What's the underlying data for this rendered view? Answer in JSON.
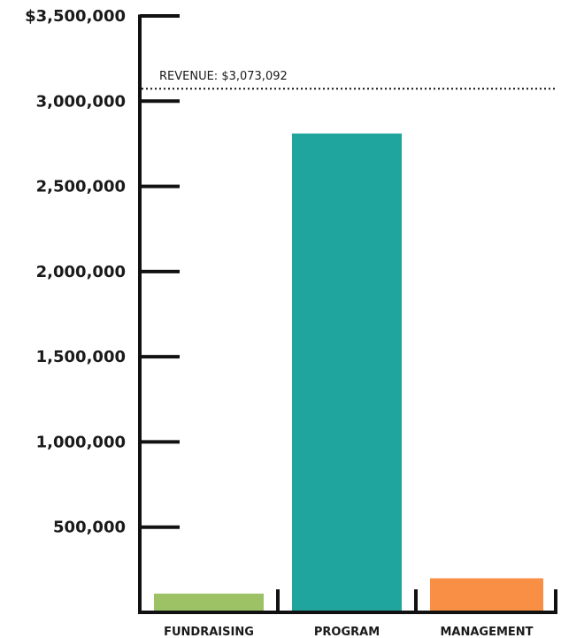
{
  "chart_data": {
    "type": "bar",
    "categories": [
      "FUNDRAISING",
      "PROGRAM",
      "MANAGEMENT"
    ],
    "values": [
      110000,
      2810000,
      200000
    ],
    "colors": [
      "#9dc265",
      "#1fa59e",
      "#f88f45"
    ],
    "ylim": [
      0,
      3500000
    ],
    "y_ticks": [
      500000,
      1000000,
      1500000,
      2000000,
      2500000,
      3000000,
      3500000
    ],
    "y_tick_labels": [
      "500,000",
      "1,000,000",
      "1,500,000",
      "2,000,000",
      "2,500,000",
      "3,000,000",
      "$3,500,000"
    ],
    "reference_line": {
      "value": 3073092,
      "label": "REVENUE: $3,073,092",
      "style": "dotted"
    },
    "title": "",
    "xlabel": "",
    "ylabel": "",
    "grid": false,
    "legend": "none"
  }
}
